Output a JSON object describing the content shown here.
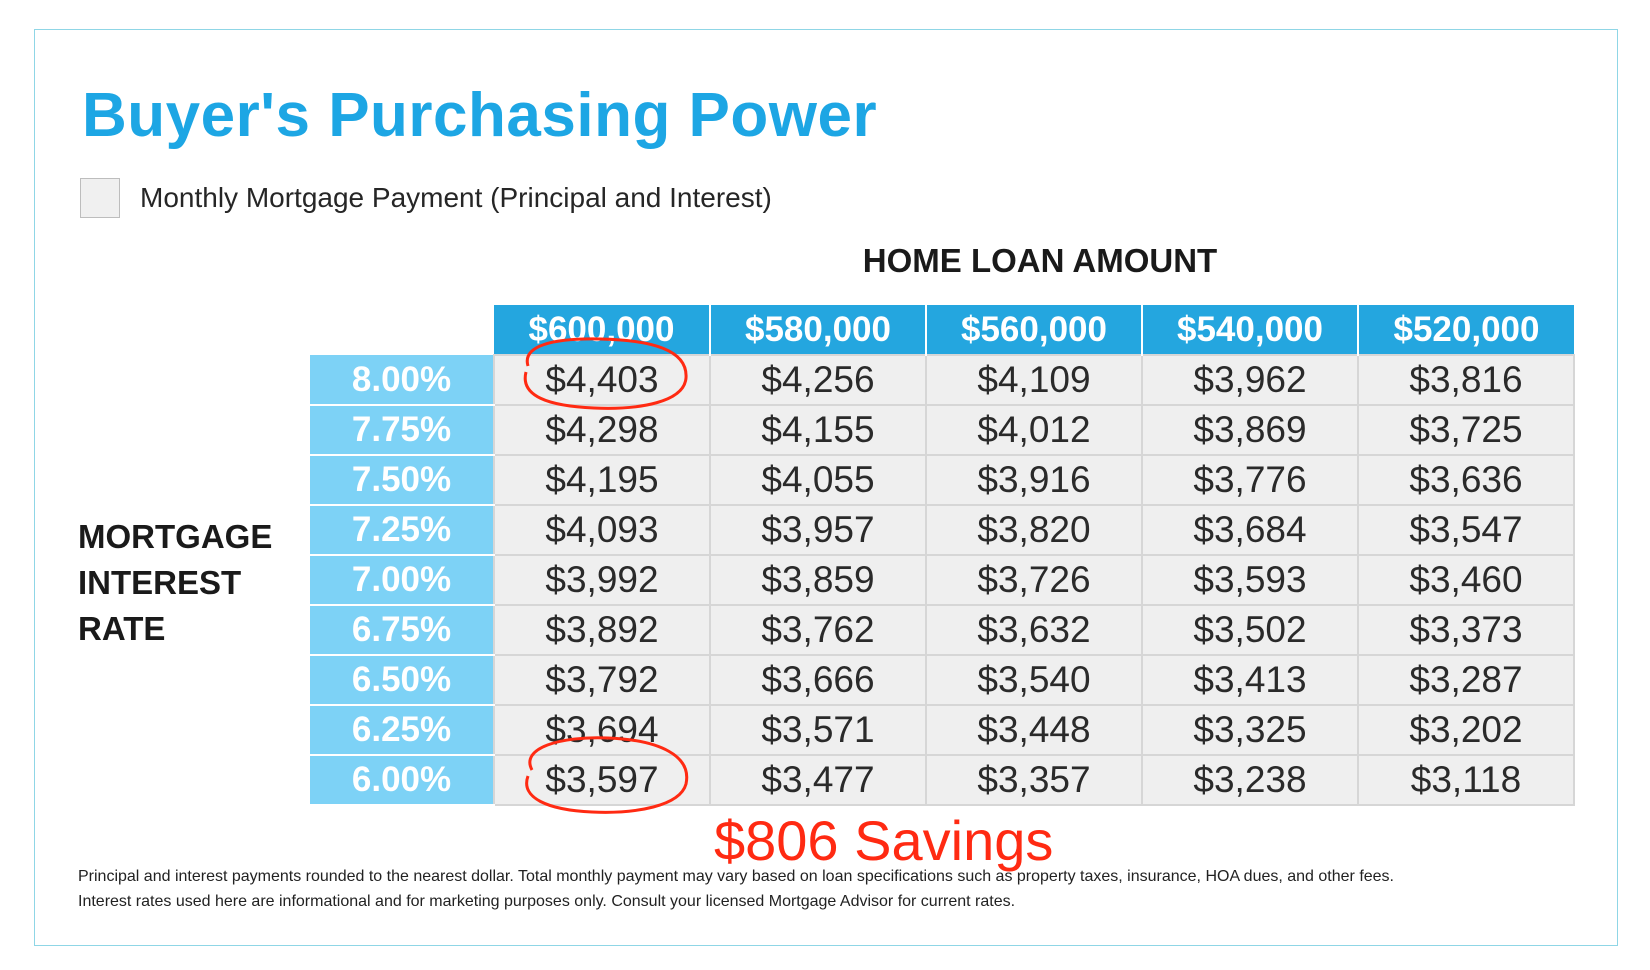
{
  "title": "Buyer's Purchasing Power",
  "legend": {
    "label": "Monthly Mortgage Payment (Principal and Interest)"
  },
  "column_heading": "HOME LOAN AMOUNT",
  "row_heading": [
    "MORTGAGE",
    "INTEREST",
    "RATE"
  ],
  "loan_amounts": [
    "$600,000",
    "$580,000",
    "$560,000",
    "$540,000",
    "$520,000"
  ],
  "rows": [
    {
      "rate": "8.00%",
      "payments": [
        "$4,403",
        "$4,256",
        "$4,109",
        "$3,962",
        "$3,816"
      ]
    },
    {
      "rate": "7.75%",
      "payments": [
        "$4,298",
        "$4,155",
        "$4,012",
        "$3,869",
        "$3,725"
      ]
    },
    {
      "rate": "7.50%",
      "payments": [
        "$4,195",
        "$4,055",
        "$3,916",
        "$3,776",
        "$3,636"
      ]
    },
    {
      "rate": "7.25%",
      "payments": [
        "$4,093",
        "$3,957",
        "$3,820",
        "$3,684",
        "$3,547"
      ]
    },
    {
      "rate": "7.00%",
      "payments": [
        "$3,992",
        "$3,859",
        "$3,726",
        "$3,593",
        "$3,460"
      ]
    },
    {
      "rate": "6.75%",
      "payments": [
        "$3,892",
        "$3,762",
        "$3,632",
        "$3,502",
        "$3,373"
      ]
    },
    {
      "rate": "6.50%",
      "payments": [
        "$3,792",
        "$3,666",
        "$3,540",
        "$3,413",
        "$3,287"
      ]
    },
    {
      "rate": "6.25%",
      "payments": [
        "$3,694",
        "$3,571",
        "$3,448",
        "$3,325",
        "$3,202"
      ]
    },
    {
      "rate": "6.00%",
      "payments": [
        "$3,597",
        "$3,477",
        "$3,357",
        "$3,238",
        "$3,118"
      ]
    }
  ],
  "annotation": {
    "text": "$806 Savings",
    "color": "#ff2a12"
  },
  "footnote": [
    "Principal and interest payments rounded to the nearest dollar. Total monthly payment may vary based on loan specifications such as property taxes, insurance, HOA dues, and other fees.",
    "Interest rates used here are informational and for marketing purposes only. Consult your licensed Mortgage Advisor for current rates."
  ],
  "colors": {
    "title": "#1da6e4",
    "header_fill": "#24a6df",
    "rate_fill": "#7dd2f6",
    "cell_fill": "#efefef",
    "frame_border": "#8fd6e6"
  }
}
